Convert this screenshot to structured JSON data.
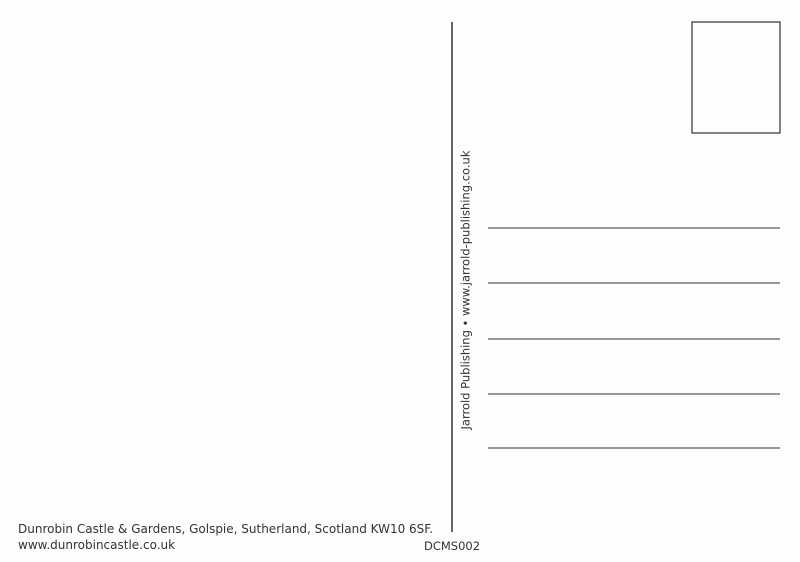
{
  "caption": {
    "line1": "Dunrobin Castle & Gardens, Golspie, Sutherland, Scotland KW10 6SF.",
    "line2": "www.dunrobincastle.co.uk"
  },
  "publisher": "Jarrold Publishing • www.jarrold-publishing.co.uk",
  "code": "DCMS002"
}
